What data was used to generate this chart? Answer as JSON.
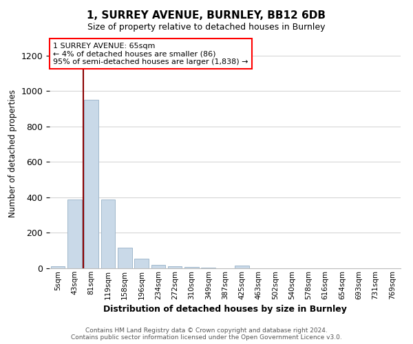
{
  "title": "1, SURREY AVENUE, BURNLEY, BB12 6DB",
  "subtitle": "Size of property relative to detached houses in Burnley",
  "xlabel": "Distribution of detached houses by size in Burnley",
  "ylabel": "Number of detached properties",
  "bar_categories": [
    "5sqm",
    "43sqm",
    "81sqm",
    "119sqm",
    "158sqm",
    "196sqm",
    "234sqm",
    "272sqm",
    "310sqm",
    "349sqm",
    "387sqm",
    "425sqm",
    "463sqm",
    "502sqm",
    "540sqm",
    "578sqm",
    "616sqm",
    "654sqm",
    "693sqm",
    "731sqm",
    "769sqm"
  ],
  "bar_values": [
    10,
    390,
    950,
    390,
    115,
    55,
    18,
    10,
    7,
    5,
    0,
    15,
    0,
    0,
    0,
    0,
    0,
    0,
    0,
    0,
    0
  ],
  "bar_color": "#c9d9e8",
  "bar_edgecolor": "#a0b8cc",
  "vline_x": 1.5,
  "vline_color": "#8b0000",
  "annotation_text": "1 SURREY AVENUE: 65sqm\n← 4% of detached houses are smaller (86)\n95% of semi-detached houses are larger (1,838) →",
  "ylim": [
    0,
    1300
  ],
  "yticks": [
    0,
    200,
    400,
    600,
    800,
    1000,
    1200
  ],
  "footer_line1": "Contains HM Land Registry data © Crown copyright and database right 2024.",
  "footer_line2": "Contains public sector information licensed under the Open Government Licence v3.0.",
  "background_color": "#ffffff",
  "grid_color": "#d0d0d0"
}
